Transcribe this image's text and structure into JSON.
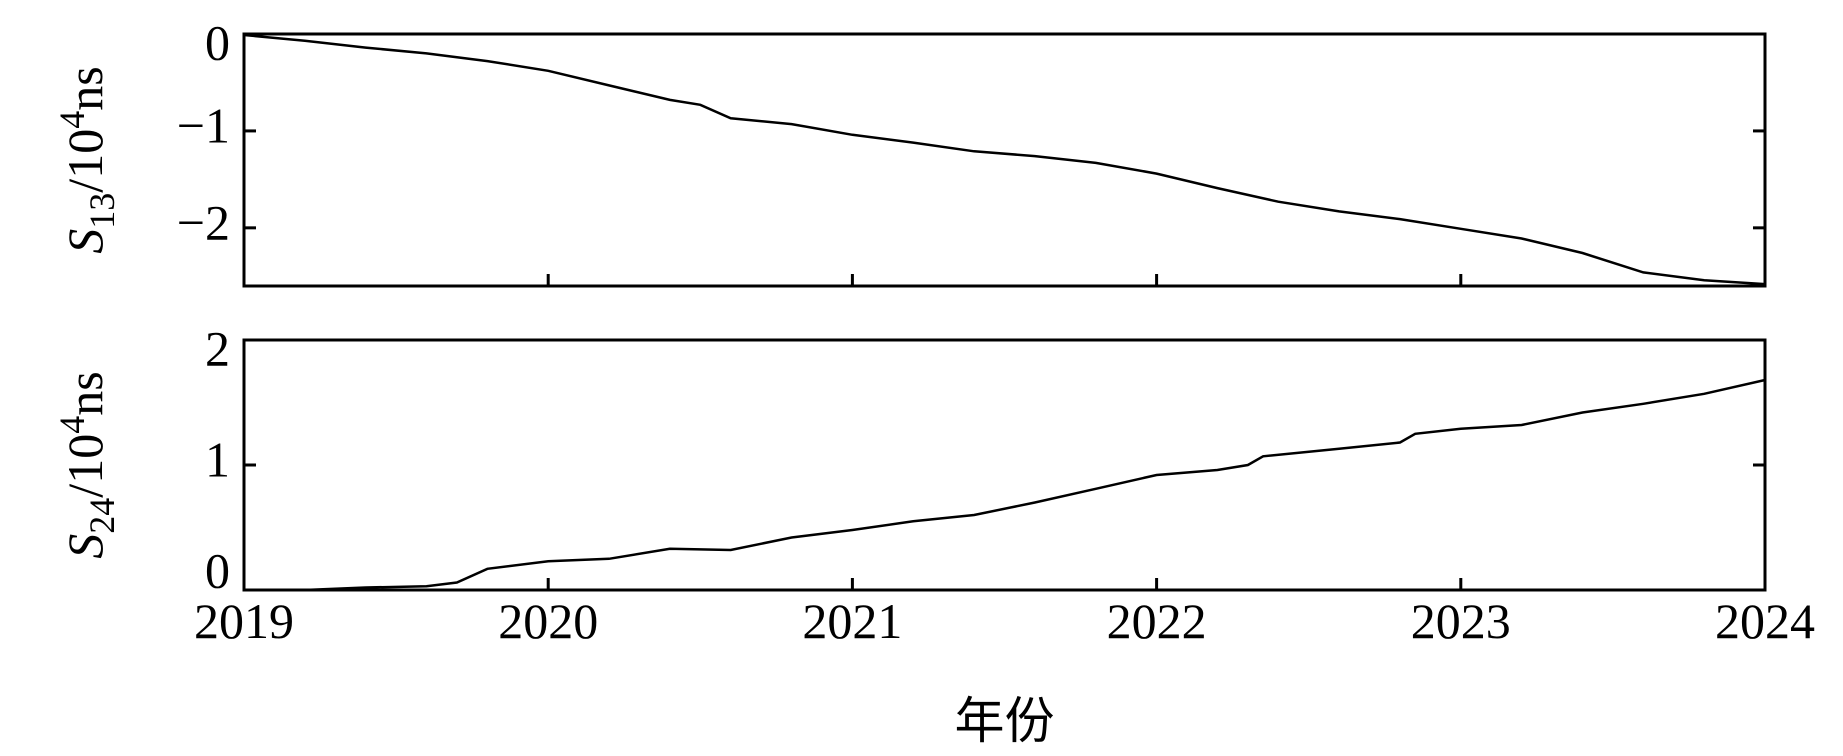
{
  "chart_data": [
    {
      "type": "line",
      "y_label": {
        "symbol": "S",
        "subscript": "13",
        "middle": "/10",
        "superscript": "4",
        "unit": "ns"
      },
      "xlim": [
        2019,
        2024
      ],
      "ylim": [
        -2.6,
        0
      ],
      "yticks": [
        0,
        {
          "value": -1,
          "label": "−1"
        },
        {
          "value": -2,
          "label": "−2"
        }
      ],
      "series": [
        {
          "color": "#000000",
          "x": [
            2019.0,
            2019.2,
            2019.4,
            2019.6,
            2019.8,
            2020.0,
            2020.2,
            2020.4,
            2020.5,
            2020.6,
            2020.8,
            2021.0,
            2021.2,
            2021.4,
            2021.6,
            2021.8,
            2022.0,
            2022.2,
            2022.4,
            2022.6,
            2022.8,
            2023.0,
            2023.2,
            2023.4,
            2023.6,
            2023.8,
            2024.0
          ],
          "values": [
            -0.01,
            -0.07,
            -0.14,
            -0.2,
            -0.28,
            -0.38,
            -0.53,
            -0.68,
            -0.73,
            -0.87,
            -0.93,
            -1.04,
            -1.12,
            -1.21,
            -1.26,
            -1.33,
            -1.44,
            -1.59,
            -1.73,
            -1.83,
            -1.91,
            -2.01,
            -2.11,
            -2.26,
            -2.46,
            -2.54,
            -2.58
          ]
        }
      ]
    },
    {
      "type": "line",
      "y_label": {
        "symbol": "S",
        "subscript": "24",
        "middle": "/10",
        "superscript": "4",
        "unit": "ns"
      },
      "x_label": "年份",
      "xlim": [
        2019,
        2024
      ],
      "xticks": [
        2019,
        2020,
        2021,
        2022,
        2023,
        2024
      ],
      "ylim": [
        0,
        2
      ],
      "yticks": [
        0,
        1,
        2
      ],
      "series": [
        {
          "color": "#000000",
          "x": [
            2019.0,
            2019.2,
            2019.4,
            2019.6,
            2019.7,
            2019.8,
            2020.0,
            2020.2,
            2020.4,
            2020.6,
            2020.8,
            2021.0,
            2021.2,
            2021.4,
            2021.6,
            2021.8,
            2022.0,
            2022.2,
            2022.3,
            2022.35,
            2022.6,
            2022.8,
            2022.85,
            2023.0,
            2023.2,
            2023.4,
            2023.6,
            2023.8,
            2024.0
          ],
          "values": [
            0.0,
            0.0,
            0.02,
            0.03,
            0.06,
            0.17,
            0.23,
            0.25,
            0.33,
            0.32,
            0.42,
            0.48,
            0.55,
            0.6,
            0.7,
            0.81,
            0.92,
            0.96,
            1.0,
            1.07,
            1.13,
            1.18,
            1.25,
            1.29,
            1.32,
            1.42,
            1.49,
            1.57,
            1.68
          ]
        }
      ]
    }
  ]
}
